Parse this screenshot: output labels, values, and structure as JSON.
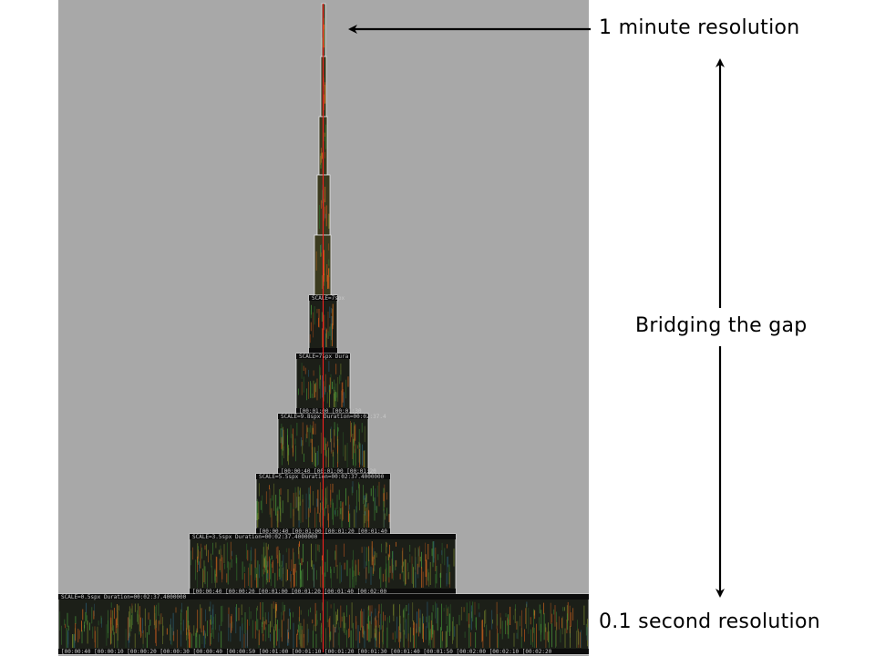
{
  "labels": {
    "top": "1 minute resolution",
    "middle": "Bridging the gap",
    "bottom": "0.1 second resolution"
  },
  "colors": {
    "panel_background": "#a8a8a8",
    "spectrogram_base": "#1c1f18",
    "cursor_line": "#ff2020",
    "arrow": "#000000"
  },
  "tiers": [
    {
      "header": "",
      "footer": ""
    },
    {
      "header": "",
      "footer": ""
    },
    {
      "header": "",
      "footer": ""
    },
    {
      "header": "",
      "footer": ""
    },
    {
      "header": "SCALE=7spx",
      "footer": ""
    },
    {
      "header": "SCALE=7spx  Dura",
      "footer": "[00:01:00  [00:01:30"
    },
    {
      "header": "SCALE=9.8spx  Duration=00:02:37.4",
      "footer": "[00:00:40  [00:01:00  [00:01:20"
    },
    {
      "header": "SCALE=5.5spx  Duration=00:02:37.4000000",
      "footer": "[00:00:40  [00:01:00  [00:01:20  [00:01:40"
    },
    {
      "header": "SCALE=3.5spx  Duration=00:02:37.4000000",
      "footer": "[00:00:40  [00:00:20  [00:01:00  [00:01:20  [00:01:40  [00:02:00"
    },
    {
      "header": "SCALE=0.5spx  Duration=00:02:37.4000000",
      "footer": "[00:00:40  [00:00:10  [00:00:20  [00:00:30  [00:00:40  [00:00:50  [00:01:00  [00:01:10  [00:01:20  [00:01:30  [00:01:40  [00:01:50  [00:02:00  [00:02:10  [00:02:20"
    }
  ]
}
